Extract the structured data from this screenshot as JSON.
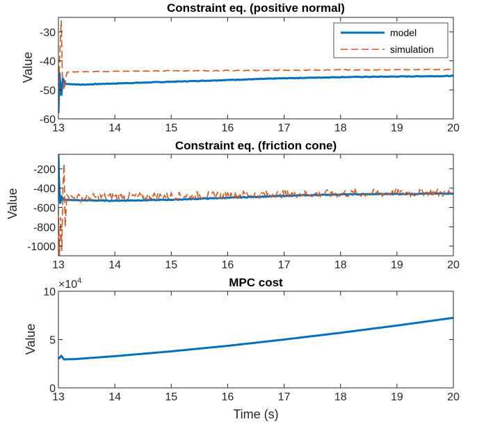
{
  "chart_data": [
    {
      "type": "line",
      "title": "Constraint eq. (positive normal)",
      "xlabel": "",
      "ylabel": "Value",
      "xlim": [
        13,
        20
      ],
      "ylim": [
        -60,
        -25
      ],
      "xticks": [
        "13",
        "14",
        "15",
        "16",
        "17",
        "18",
        "19",
        "20"
      ],
      "yticks": [
        "-60",
        "-50",
        "-40",
        "-30"
      ],
      "yticks_values": [
        -60,
        -50,
        -40,
        -30
      ],
      "legend": {
        "placement": "top-right",
        "entries": [
          "model",
          "simulation"
        ]
      },
      "series": [
        {
          "name": "model",
          "color": "#0072BD",
          "style": "solid",
          "x": [
            13.0,
            13.02,
            13.05,
            13.08,
            13.12,
            13.2,
            13.4,
            13.7,
            14.0,
            14.5,
            15.0,
            15.5,
            16.0,
            16.5,
            17.0,
            17.5,
            18.0,
            18.5,
            19.0,
            19.5,
            20.0
          ],
          "y": [
            -58,
            -44,
            -52,
            -46,
            -48,
            -48,
            -48.2,
            -48.0,
            -47.8,
            -47.5,
            -47.2,
            -46.9,
            -46.6,
            -46.3,
            -46.0,
            -45.8,
            -45.6,
            -45.5,
            -45.4,
            -45.3,
            -45.2
          ]
        },
        {
          "name": "simulation",
          "color": "#D95319",
          "style": "dashed",
          "x": [
            13.0,
            13.02,
            13.05,
            13.07,
            13.1,
            13.15,
            13.2,
            13.5,
            14.0,
            14.5,
            15.0,
            15.5,
            16.0,
            16.5,
            17.0,
            17.5,
            18.0,
            18.5,
            19.0,
            19.5,
            20.0
          ],
          "y": [
            -55,
            -40,
            -26,
            -45,
            -50,
            -44,
            -43.8,
            -43.7,
            -43.6,
            -43.5,
            -43.4,
            -43.4,
            -43.3,
            -43.3,
            -43.2,
            -43.2,
            -43.1,
            -43.1,
            -43.0,
            -43.0,
            -43.0
          ]
        }
      ]
    },
    {
      "type": "line",
      "title": "Constraint eq. (friction cone)",
      "xlabel": "",
      "ylabel": "Value",
      "xlim": [
        13,
        20
      ],
      "ylim": [
        -1100,
        -50
      ],
      "xticks": [
        "13",
        "14",
        "15",
        "16",
        "17",
        "18",
        "19",
        "20"
      ],
      "yticks": [
        "-1000",
        "-800",
        "-600",
        "-400",
        "-200"
      ],
      "yticks_values": [
        -1000,
        -800,
        -600,
        -400,
        -200
      ],
      "series": [
        {
          "name": "model",
          "color": "#0072BD",
          "style": "solid",
          "x": [
            13.0,
            13.01,
            13.03,
            13.06,
            13.1,
            13.3,
            14.0,
            15.0,
            16.0,
            17.0,
            18.0,
            19.0,
            20.0
          ],
          "y": [
            -50,
            -300,
            -560,
            -490,
            -520,
            -525,
            -530,
            -520,
            -500,
            -480,
            -465,
            -460,
            -455
          ],
          "noise": 8
        },
        {
          "name": "simulation",
          "color": "#D95319",
          "style": "dashed",
          "x": [
            13.0,
            13.02,
            13.04,
            13.06,
            13.08,
            13.1,
            13.12,
            13.15,
            13.2,
            14.0,
            15.0,
            16.0,
            17.0,
            18.0,
            19.0,
            20.0
          ],
          "y": [
            -600,
            -1100,
            -700,
            -1050,
            -400,
            -150,
            -800,
            -470,
            -500,
            -490,
            -480,
            -470,
            -460,
            -455,
            -450,
            -450
          ],
          "noise": 40
        }
      ]
    },
    {
      "type": "line",
      "title": "MPC cost",
      "xlabel": "Time (s)",
      "ylabel": "Value",
      "xlim": [
        13,
        20
      ],
      "ylim": [
        0,
        100000
      ],
      "exponent_label": "×10",
      "exponent": "4",
      "xticks": [
        "13",
        "14",
        "15",
        "16",
        "17",
        "18",
        "19",
        "20"
      ],
      "yticks": [
        "0",
        "5",
        "10"
      ],
      "yticks_values": [
        0,
        50000,
        100000
      ],
      "series": [
        {
          "name": "model",
          "color": "#0072BD",
          "style": "solid",
          "x": [
            13.0,
            13.05,
            13.1,
            13.3,
            14.0,
            15.0,
            16.0,
            17.0,
            18.0,
            19.0,
            20.0
          ],
          "y": [
            30000,
            33000,
            29500,
            29800,
            32800,
            37800,
            43500,
            50000,
            57000,
            64500,
            72500
          ]
        }
      ]
    }
  ]
}
